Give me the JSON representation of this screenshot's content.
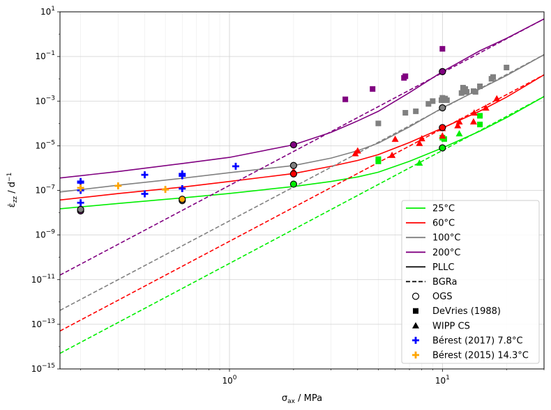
{
  "chart_data": {
    "type": "line",
    "xlabel_base": "σ",
    "xlabel_sub": "ax",
    "xlabel_unit": " / MPa",
    "ylabel_dot": "ε̇",
    "ylabel_sub": "zz",
    "ylabel_unit": " / d",
    "ylabel_exp": "−1",
    "x_scale": "log",
    "y_scale": "log",
    "xlim": [
      0.16,
      30
    ],
    "ylim": [
      1e-15,
      10
    ],
    "grid": true,
    "legend_position": "lower right",
    "x_ticks": [
      {
        "v": 1,
        "base": "10",
        "exp": "0"
      },
      {
        "v": 10,
        "base": "10",
        "exp": "1"
      }
    ],
    "y_ticks": [
      {
        "v": 1e-15,
        "base": "10",
        "exp": "−15"
      },
      {
        "v": 1e-13,
        "base": "10",
        "exp": "−13"
      },
      {
        "v": 1e-11,
        "base": "10",
        "exp": "−11"
      },
      {
        "v": 1e-09,
        "base": "10",
        "exp": "−9"
      },
      {
        "v": 1e-07,
        "base": "10",
        "exp": "−7"
      },
      {
        "v": 1e-05,
        "base": "10",
        "exp": "−5"
      },
      {
        "v": 0.001,
        "base": "10",
        "exp": "−3"
      },
      {
        "v": 0.1,
        "base": "10",
        "exp": "−1"
      },
      {
        "v": 10,
        "base": "10",
        "exp": "1"
      }
    ],
    "temperatures": [
      {
        "label": "25°C",
        "color": "#00ee00"
      },
      {
        "label": "60°C",
        "color": "#ff0000"
      },
      {
        "label": "100°C",
        "color": "#808080"
      },
      {
        "label": "200°C",
        "color": "#800080"
      }
    ],
    "line_styles": [
      {
        "label": "PLLC",
        "style": "solid"
      },
      {
        "label": "BGRa",
        "style": "dashed"
      }
    ],
    "marker_legend": [
      {
        "label": "OGS",
        "marker": "circle-open",
        "color": "#000000"
      },
      {
        "label": "DeVries (1988)",
        "marker": "square",
        "color": "#000000"
      },
      {
        "label": "WIPP CS",
        "marker": "triangle",
        "color": "#000000"
      },
      {
        "label": "Bérest (2017) 7.8°C",
        "marker": "plus",
        "color": "#0000ff"
      },
      {
        "label": "Bérest (2015) 14.3°C",
        "marker": "plus",
        "color": "#ffa500"
      }
    ],
    "series": [
      {
        "temp": "25°C",
        "model": "PLLC",
        "x": [
          0.16,
          0.3,
          0.6,
          1,
          2,
          3,
          4,
          5,
          7,
          10,
          15,
          20,
          30
        ],
        "y": [
          1.5e-08,
          2.6e-08,
          4.6e-08,
          7.3e-08,
          1.5e-07,
          2.5e-07,
          4e-07,
          6.5e-07,
          2e-06,
          8e-06,
          4.5e-05,
          0.00018,
          0.0016
        ]
      },
      {
        "temp": "60°C",
        "model": "PLLC",
        "x": [
          0.16,
          0.3,
          0.6,
          1,
          2,
          3,
          4,
          5,
          7,
          10,
          15,
          20,
          30
        ],
        "y": [
          3.7e-08,
          7.2e-08,
          1.4e-07,
          2.5e-07,
          5.7e-07,
          1.2e-06,
          2.2e-06,
          4e-06,
          1.4e-05,
          6.2e-05,
          0.00036,
          0.0015,
          0.015
        ]
      },
      {
        "temp": "100°C",
        "model": "PLLC",
        "x": [
          0.16,
          0.3,
          0.6,
          1,
          2,
          3,
          4,
          5,
          7,
          10,
          15,
          20,
          30
        ],
        "y": [
          8.5e-08,
          1.7e-07,
          3.5e-07,
          6.2e-07,
          1.3e-06,
          2.8e-06,
          6e-06,
          1.3e-05,
          7e-05,
          0.0005,
          0.0035,
          0.014,
          0.12
        ]
      },
      {
        "temp": "200°C",
        "model": "PLLC",
        "x": [
          0.16,
          0.3,
          0.6,
          1,
          2,
          3,
          4,
          5,
          7,
          10,
          15,
          20,
          30
        ],
        "y": [
          3.6e-07,
          7e-07,
          1.6e-06,
          3e-06,
          1.1e-05,
          4e-05,
          0.00013,
          0.00035,
          0.0024,
          0.021,
          0.18,
          0.65,
          4.8
        ]
      },
      {
        "temp": "25°C",
        "model": "BGRa",
        "x": [
          0.16,
          30
        ],
        "y": [
          5e-15,
          0.0016
        ]
      },
      {
        "temp": "60°C",
        "model": "BGRa",
        "x": [
          0.16,
          30
        ],
        "y": [
          5e-14,
          0.015
        ]
      },
      {
        "temp": "100°C",
        "model": "BGRa",
        "x": [
          0.16,
          30
        ],
        "y": [
          4.2e-13,
          0.12
        ]
      },
      {
        "temp": "200°C",
        "model": "BGRa",
        "x": [
          0.16,
          30
        ],
        "y": [
          1.6e-11,
          4.8
        ]
      }
    ],
    "ogs_points": [
      {
        "x": 0.2,
        "y": 1.2e-08,
        "fill": "#800080"
      },
      {
        "x": 0.2,
        "y": 1.4e-08,
        "fill": "#808080"
      },
      {
        "x": 0.6,
        "y": 3.5e-08,
        "fill": "#808080"
      },
      {
        "x": 0.6,
        "y": 4e-08,
        "fill": "#ffa500"
      },
      {
        "x": 2,
        "y": 1.1e-05,
        "fill": "#800080"
      },
      {
        "x": 2,
        "y": 1.3e-06,
        "fill": "#808080"
      },
      {
        "x": 2,
        "y": 5.5e-07,
        "fill": "#ff0000"
      },
      {
        "x": 2,
        "y": 1.9e-07,
        "fill": "#00ee00"
      },
      {
        "x": 10,
        "y": 0.021,
        "fill": "#800080"
      },
      {
        "x": 10,
        "y": 0.0005,
        "fill": "#808080"
      },
      {
        "x": 10,
        "y": 6.5e-05,
        "fill": "#ff0000"
      },
      {
        "x": 10,
        "y": 8e-06,
        "fill": "#00ee00"
      }
    ],
    "devries_points": [
      {
        "x": 3.5,
        "y": 0.0012,
        "color": "#800080"
      },
      {
        "x": 4.7,
        "y": 0.0035,
        "color": "#800080"
      },
      {
        "x": 6.6,
        "y": 0.011,
        "color": "#800080"
      },
      {
        "x": 6.7,
        "y": 0.013,
        "color": "#800080"
      },
      {
        "x": 10,
        "y": 0.22,
        "color": "#800080"
      },
      {
        "x": 5,
        "y": 0.0001,
        "color": "#808080"
      },
      {
        "x": 6.7,
        "y": 0.0003,
        "color": "#808080"
      },
      {
        "x": 7.5,
        "y": 0.00035,
        "color": "#808080"
      },
      {
        "x": 8.6,
        "y": 0.00075,
        "color": "#808080"
      },
      {
        "x": 9,
        "y": 0.001,
        "color": "#808080"
      },
      {
        "x": 9.9,
        "y": 0.0011,
        "color": "#808080"
      },
      {
        "x": 10,
        "y": 0.0014,
        "color": "#808080"
      },
      {
        "x": 10.3,
        "y": 0.0013,
        "color": "#808080"
      },
      {
        "x": 10.5,
        "y": 0.0011,
        "color": "#808080"
      },
      {
        "x": 12.3,
        "y": 0.0023,
        "color": "#808080"
      },
      {
        "x": 12.5,
        "y": 0.004,
        "color": "#808080"
      },
      {
        "x": 12.8,
        "y": 0.0035,
        "color": "#808080"
      },
      {
        "x": 13,
        "y": 0.0026,
        "color": "#808080"
      },
      {
        "x": 14,
        "y": 0.0028,
        "color": "#808080"
      },
      {
        "x": 14.3,
        "y": 0.0026,
        "color": "#808080"
      },
      {
        "x": 15,
        "y": 0.0046,
        "color": "#808080"
      },
      {
        "x": 17,
        "y": 0.01,
        "color": "#808080"
      },
      {
        "x": 17.3,
        "y": 0.012,
        "color": "#808080"
      },
      {
        "x": 20,
        "y": 0.032,
        "color": "#808080"
      },
      {
        "x": 5,
        "y": 2.5e-06,
        "color": "#00ee00"
      },
      {
        "x": 5,
        "y": 2e-06,
        "color": "#00ee00"
      },
      {
        "x": 10,
        "y": 2.3e-05,
        "color": "#00ee00"
      },
      {
        "x": 10.2,
        "y": 2e-05,
        "color": "#00ee00"
      },
      {
        "x": 15,
        "y": 0.00022,
        "color": "#00ee00"
      },
      {
        "x": 15,
        "y": 9e-05,
        "color": "#00ee00"
      }
    ],
    "wipp_points": [
      {
        "x": 2,
        "y": 7.5e-07,
        "color": "#ff0000"
      },
      {
        "x": 2,
        "y": 6.5e-07,
        "color": "#ff0000"
      },
      {
        "x": 3.9,
        "y": 4.5e-06,
        "color": "#ff0000"
      },
      {
        "x": 4,
        "y": 6e-06,
        "color": "#ff0000"
      },
      {
        "x": 5.8,
        "y": 3.8e-06,
        "color": "#ff0000"
      },
      {
        "x": 6,
        "y": 2e-05,
        "color": "#ff0000"
      },
      {
        "x": 7.8,
        "y": 1.3e-05,
        "color": "#ff0000"
      },
      {
        "x": 8,
        "y": 2.1e-05,
        "color": "#ff0000"
      },
      {
        "x": 10,
        "y": 6e-05,
        "color": "#ff0000"
      },
      {
        "x": 10,
        "y": 2.8e-05,
        "color": "#ff0000"
      },
      {
        "x": 11.8,
        "y": 8e-05,
        "color": "#ff0000"
      },
      {
        "x": 12,
        "y": 0.00012,
        "color": "#ff0000"
      },
      {
        "x": 14,
        "y": 0.00012,
        "color": "#ff0000"
      },
      {
        "x": 14.1,
        "y": 0.0003,
        "color": "#ff0000"
      },
      {
        "x": 16,
        "y": 0.0005,
        "color": "#ff0000"
      },
      {
        "x": 18,
        "y": 0.0013,
        "color": "#ff0000"
      },
      {
        "x": 7.8,
        "y": 1.7e-06,
        "color": "#00ee00"
      },
      {
        "x": 12,
        "y": 3.5e-05,
        "color": "#00ee00"
      }
    ],
    "berest2017_points": [
      {
        "x": 0.2,
        "y": 2.5e-07
      },
      {
        "x": 0.2,
        "y": 2.2e-07
      },
      {
        "x": 0.2,
        "y": 1e-07
      },
      {
        "x": 0.2,
        "y": 2.8e-08
      },
      {
        "x": 0.4,
        "y": 5e-07
      },
      {
        "x": 0.4,
        "y": 7e-08
      },
      {
        "x": 0.6,
        "y": 5.5e-07
      },
      {
        "x": 0.6,
        "y": 4.5e-07
      },
      {
        "x": 0.6,
        "y": 1.2e-07
      },
      {
        "x": 1.07,
        "y": 1.2e-06
      }
    ],
    "berest2015_points": [
      {
        "x": 0.2,
        "y": 1.3e-07
      },
      {
        "x": 0.3,
        "y": 1.6e-07
      },
      {
        "x": 0.5,
        "y": 1.1e-07
      }
    ]
  }
}
